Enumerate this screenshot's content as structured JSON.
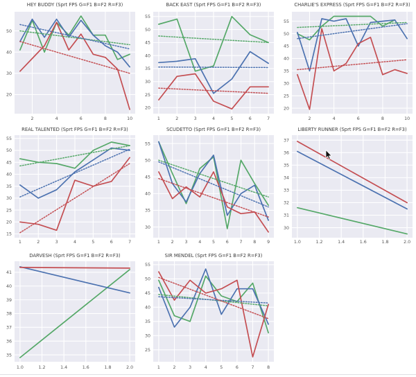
{
  "palette": {
    "green": "#55a868",
    "blue": "#4c72b0",
    "red": "#c44e52",
    "panel_bg": "#eaeaf2",
    "grid_line": "#ffffff",
    "tick_color": "#555555",
    "title_color": "#3d3d3d",
    "divider": "#dfdfe3"
  },
  "cursor": {
    "icon": "mouse-pointer-arrow"
  },
  "chart_data": [
    {
      "type": "line",
      "title": "HEY BUDDY (Sprt FPS G=F1 B=F2 R=F3)",
      "x": [
        1,
        2,
        3,
        4,
        5,
        6,
        7,
        8,
        9,
        10
      ],
      "x_tick_values": [
        2,
        4,
        6,
        8,
        10
      ],
      "x_tick_labels": [
        "2",
        "4",
        "6",
        "8",
        "10"
      ],
      "y_ticks": [
        20,
        30,
        40,
        50
      ],
      "xlim": [
        0.55,
        10.45
      ],
      "ylim": [
        11,
        59
      ],
      "grid": true,
      "legend": "none",
      "series": [
        {
          "name": "G=F1",
          "color": "green",
          "values": [
            41,
            55,
            40,
            54,
            48,
            57,
            48,
            48,
            36.5,
            39
          ]
        },
        {
          "name": "B=F2",
          "color": "blue",
          "values": [
            45,
            55.5,
            47,
            55.5,
            47,
            55,
            48,
            43,
            40,
            33
          ]
        },
        {
          "name": "R=F3",
          "color": "red",
          "values": [
            31,
            37,
            43,
            54,
            41,
            48.5,
            39,
            37.5,
            32,
            13
          ]
        }
      ],
      "trend_lines": [
        {
          "color": "green",
          "start": 50,
          "end": 43.5
        },
        {
          "color": "blue",
          "start": 53,
          "end": 41.5
        },
        {
          "color": "red",
          "start": 45,
          "end": 30
        }
      ]
    },
    {
      "type": "line",
      "title": "BACK EAST (Sprt FPS G=F1 B=F2 R=F3)",
      "x": [
        1,
        2,
        3,
        4,
        5,
        6,
        7
      ],
      "x_tick_values": [
        1,
        2,
        3,
        4,
        5,
        6,
        7
      ],
      "x_tick_labels": [
        "1",
        "2",
        "3",
        "4",
        "5",
        "6",
        "7"
      ],
      "y_ticks": [
        20,
        25,
        30,
        35,
        40,
        45,
        50,
        55
      ],
      "xlim": [
        0.7,
        7.3
      ],
      "ylim": [
        17.7,
        56.8
      ],
      "grid": true,
      "legend": "none",
      "series": [
        {
          "name": "G=F1",
          "color": "green",
          "values": [
            52,
            54,
            34,
            36,
            55,
            48,
            45
          ]
        },
        {
          "name": "B=F2",
          "color": "blue",
          "values": [
            37.3,
            37.8,
            38.8,
            25.5,
            31,
            41.5,
            37
          ]
        },
        {
          "name": "R=F3",
          "color": "red",
          "values": [
            23,
            32,
            33,
            22.5,
            19.5,
            28,
            28
          ]
        }
      ],
      "trend_lines": [
        {
          "color": "green",
          "start": 47.5,
          "end": 45
        },
        {
          "color": "blue",
          "start": 35.6,
          "end": 35.4
        },
        {
          "color": "red",
          "start": 27.5,
          "end": 25.5
        }
      ]
    },
    {
      "type": "line",
      "title": "CHARLIE'S EXPRESS (Sprt FPS G=F1 B=F2 R=F3)",
      "x": [
        1,
        2,
        3,
        4,
        5,
        6,
        7,
        8,
        9,
        10
      ],
      "x_tick_values": [
        2,
        4,
        6,
        8,
        10
      ],
      "x_tick_labels": [
        "2",
        "4",
        "6",
        "8",
        "10"
      ],
      "y_ticks": [
        20,
        25,
        30,
        35,
        40,
        45,
        50,
        55
      ],
      "xlim": [
        0.55,
        10.45
      ],
      "ylim": [
        17.8,
        58.8
      ],
      "grid": true,
      "legend": "none",
      "series": [
        {
          "name": "G=F1",
          "color": "green",
          "values": [
            50,
            47.5,
            53,
            57,
            57,
            57,
            57,
            53,
            55.5,
            null
          ]
        },
        {
          "name": "B=F2",
          "color": "blue",
          "values": [
            50.5,
            35,
            56,
            55,
            56,
            45,
            54.5,
            55,
            55.5,
            48
          ]
        },
        {
          "name": "R=F3",
          "color": "red",
          "values": [
            33.5,
            19.5,
            52,
            35,
            38,
            46,
            48.5,
            33.5,
            35.5,
            34
          ]
        }
      ],
      "trend_lines": [
        {
          "color": "green",
          "start": 52.5,
          "end": 54.5
        },
        {
          "color": "blue",
          "start": 48,
          "end": 54
        },
        {
          "color": "red",
          "start": 35.5,
          "end": 39.5
        }
      ]
    },
    {
      "type": "line",
      "title": "REAL TALENTED (Sprt FPS G=F1 B=F2 R=F3)",
      "x": [
        1,
        2,
        3,
        4,
        5,
        6,
        7
      ],
      "x_tick_values": [
        1,
        2,
        3,
        4,
        5,
        6,
        7
      ],
      "x_tick_labels": [
        "1",
        "2",
        "3",
        "4",
        "5",
        "6",
        "7"
      ],
      "y_ticks": [
        15,
        20,
        25,
        30,
        35,
        40,
        45,
        50,
        55
      ],
      "xlim": [
        0.7,
        7.3
      ],
      "ylim": [
        13.4,
        56.4
      ],
      "grid": true,
      "legend": "none",
      "series": [
        {
          "name": "G=F1",
          "color": "green",
          "values": [
            46.5,
            45,
            44.5,
            42.5,
            50,
            53.5,
            52
          ]
        },
        {
          "name": "B=F2",
          "color": "blue",
          "values": [
            35.5,
            30,
            33.5,
            41,
            46,
            51,
            50
          ]
        },
        {
          "name": "R=F3",
          "color": "red",
          "values": [
            20,
            19,
            16.5,
            37.5,
            35,
            37,
            47
          ]
        }
      ],
      "trend_lines": [
        {
          "color": "green",
          "start": 43.5,
          "end": 52
        },
        {
          "color": "blue",
          "start": 30.5,
          "end": 50.5
        },
        {
          "color": "red",
          "start": 15.5,
          "end": 44.5
        }
      ]
    },
    {
      "type": "line",
      "title": "SCUDETTO (Sprt FPS G=F1 B=F2 R=F3)",
      "x": [
        1,
        2,
        3,
        4,
        5,
        6,
        7,
        8,
        9
      ],
      "x_tick_values": [
        1,
        2,
        3,
        4,
        5,
        6,
        7,
        8,
        9
      ],
      "x_tick_labels": [
        "1",
        "2",
        "3",
        "4",
        "5",
        "6",
        "7",
        "8",
        "9"
      ],
      "y_ticks": [
        30,
        35,
        40,
        45,
        50,
        55
      ],
      "xlim": [
        0.6,
        9.4
      ],
      "ylim": [
        26.8,
        57.5
      ],
      "grid": true,
      "legend": "none",
      "series": [
        {
          "name": "G=F1",
          "color": "green",
          "values": [
            55.5,
            46,
            37,
            47.5,
            51,
            29.5,
            50,
            43,
            36.5
          ]
        },
        {
          "name": "B=F2",
          "color": "blue",
          "values": [
            55.5,
            43,
            37.5,
            46,
            51.5,
            33.5,
            40,
            42.5,
            32
          ]
        },
        {
          "name": "R=F3",
          "color": "red",
          "values": [
            46.5,
            38.5,
            42,
            39,
            46.5,
            36,
            34,
            34.5,
            28.5
          ]
        }
      ],
      "trend_lines": [
        {
          "color": "green",
          "start": 50,
          "end": 39
        },
        {
          "color": "blue",
          "start": 49.5,
          "end": 36
        },
        {
          "color": "red",
          "start": 44.5,
          "end": 33
        }
      ]
    },
    {
      "type": "line",
      "title": "LIBERTY RUNNER (Sprt FPS G=F1 B=F2 R=F3)",
      "x": [
        1,
        2
      ],
      "x_tick_values": [
        1,
        1.2,
        1.4,
        1.6,
        1.8,
        2
      ],
      "x_tick_labels": [
        "1.0",
        "1.2",
        "1.4",
        "1.6",
        "1.8",
        "2.0"
      ],
      "y_ticks": [
        30,
        31,
        32,
        33,
        34,
        35,
        36,
        37
      ],
      "xlim": [
        0.95,
        2.05
      ],
      "ylim": [
        29.2,
        37.4
      ],
      "grid": true,
      "legend": "none",
      "series": [
        {
          "name": "G=F1",
          "color": "green",
          "values": [
            31.6,
            29.5
          ]
        },
        {
          "name": "B=F2",
          "color": "blue",
          "values": [
            36.1,
            31.5
          ]
        },
        {
          "name": "R=F3",
          "color": "red",
          "values": [
            36.9,
            32
          ]
        }
      ],
      "trend_lines": []
    },
    {
      "type": "line",
      "title": "DARVESH (Sprt FPS G=F1 B=F2 R=F3)",
      "x": [
        1,
        2
      ],
      "x_tick_values": [
        1,
        1.2,
        1.4,
        1.6,
        1.8,
        2
      ],
      "x_tick_labels": [
        "1.0",
        "1.2",
        "1.4",
        "1.6",
        "1.8",
        "2.0"
      ],
      "y_ticks": [
        35,
        36,
        37,
        38,
        39,
        40,
        41
      ],
      "xlim": [
        0.95,
        2.05
      ],
      "ylim": [
        34.5,
        41.8
      ],
      "grid": true,
      "legend": "none",
      "series": [
        {
          "name": "G=F1",
          "color": "green",
          "values": [
            34.8,
            41.2
          ]
        },
        {
          "name": "B=F2",
          "color": "blue",
          "values": [
            41.4,
            39.5
          ]
        },
        {
          "name": "R=F3",
          "color": "red",
          "values": [
            41.35,
            41.3
          ]
        }
      ],
      "trend_lines": []
    },
    {
      "type": "line",
      "title": "SIR MENDEL (Sprt FPS G=F1 B=F2 R=F3)",
      "x": [
        1,
        2,
        3,
        4,
        5,
        6,
        7,
        8
      ],
      "x_tick_values": [
        1,
        2,
        3,
        4,
        5,
        6,
        7,
        8
      ],
      "x_tick_labels": [
        "1",
        "2",
        "3",
        "4",
        "5",
        "6",
        "7",
        "8"
      ],
      "y_ticks": [
        25,
        30,
        35,
        40,
        45,
        50,
        55
      ],
      "xlim": [
        0.65,
        8.35
      ],
      "ylim": [
        20.8,
        56.2
      ],
      "grid": true,
      "legend": "none",
      "series": [
        {
          "name": "G=F1",
          "color": "green",
          "values": [
            49.5,
            37,
            35,
            51,
            44,
            42,
            48.5,
            31
          ]
        },
        {
          "name": "B=F2",
          "color": "blue",
          "values": [
            47,
            33,
            40,
            53.5,
            37.5,
            46.5,
            46.5,
            34
          ]
        },
        {
          "name": "R=F3",
          "color": "red",
          "values": [
            52.5,
            42.5,
            49.5,
            45,
            46.5,
            49.5,
            22.5,
            41
          ]
        }
      ],
      "trend_lines": [
        {
          "color": "green",
          "start": 44.5,
          "end": 40.5
        },
        {
          "color": "blue",
          "start": 43.7,
          "end": 41.5
        },
        {
          "color": "red",
          "start": 50.5,
          "end": 36
        }
      ]
    }
  ]
}
